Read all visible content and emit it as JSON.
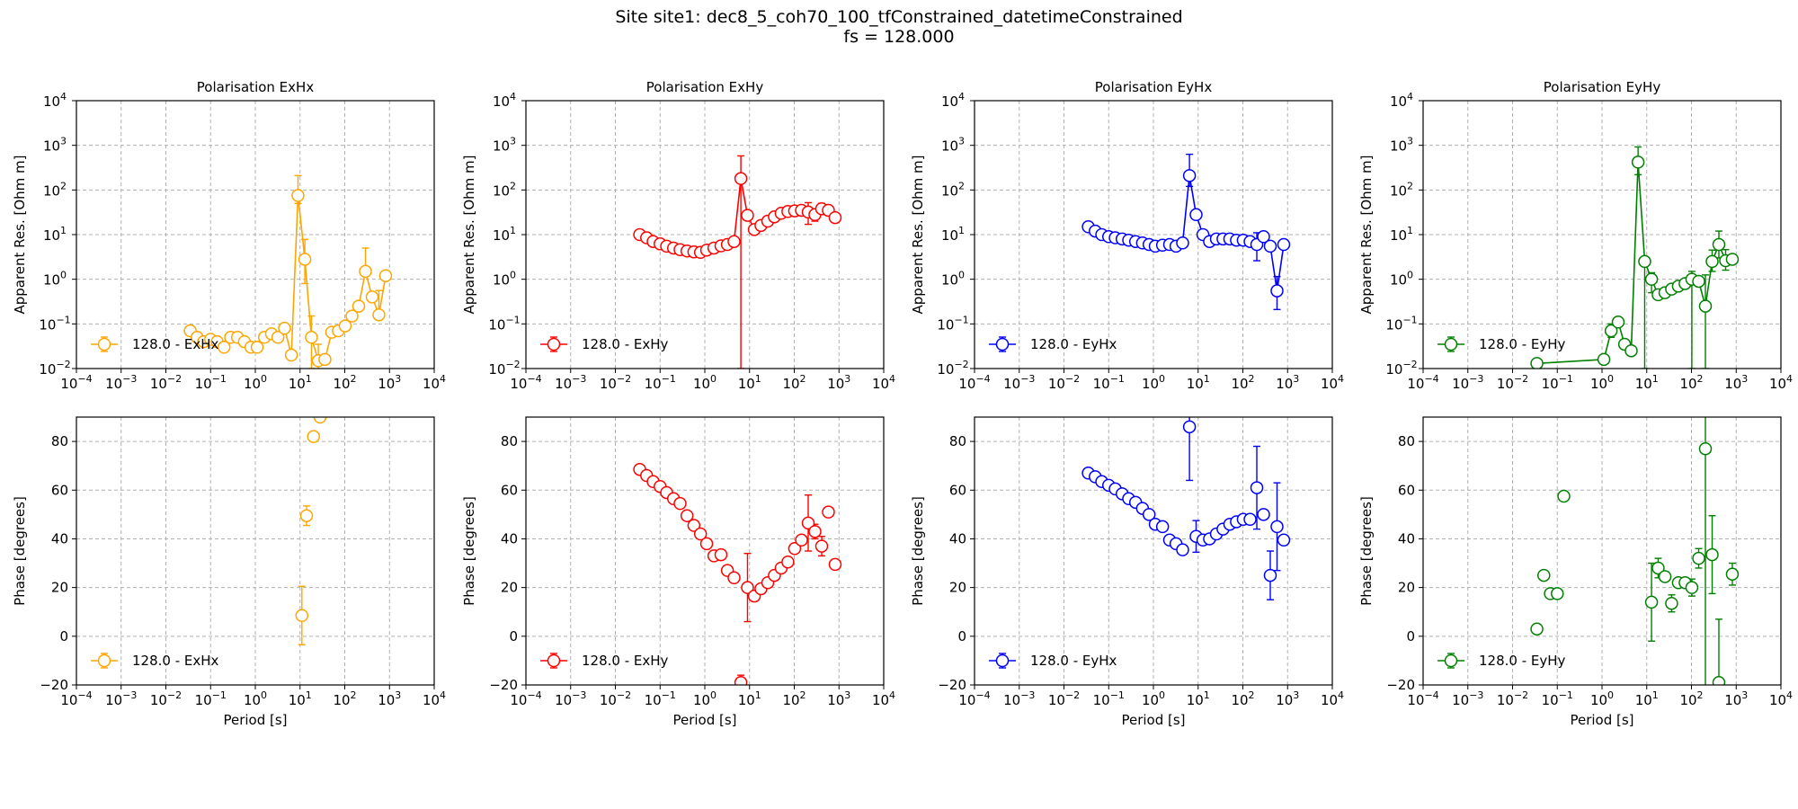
{
  "figure": {
    "title_line1": "Site site1: dec8_5_coh70_100_tfConstrained_datetimeConstrained",
    "title_line2": "fs = 128.000"
  },
  "chart_data": [
    {
      "type": "scatter",
      "panel": "res-ExHx",
      "title": "Polarisation ExHx",
      "xlabel": "",
      "ylabel": "Apparent Res. [Ohm m]",
      "xscale": "log",
      "yscale": "log",
      "xlim": [
        0.0001,
        10000
      ],
      "ylim": [
        0.01,
        10000
      ],
      "grid": true,
      "color": "#ffa500",
      "connect": true,
      "legend": {
        "label": "128.0 - ExHx",
        "loc": "lower-left"
      },
      "x": [
        0.035,
        0.05,
        0.07,
        0.1,
        0.14,
        0.2,
        0.28,
        0.4,
        0.57,
        0.8,
        1.1,
        1.6,
        2.3,
        3.2,
        4.5,
        6.4,
        9,
        12.8,
        18,
        25.6,
        36,
        51,
        72,
        102,
        145,
        205,
        290,
        410,
        580,
        820
      ],
      "y": [
        0.07,
        0.05,
        0.04,
        0.045,
        0.04,
        0.03,
        0.05,
        0.05,
        0.04,
        0.03,
        0.03,
        0.05,
        0.06,
        0.05,
        0.08,
        0.02,
        75,
        2.8,
        0.05,
        0.015,
        0.016,
        0.065,
        0.07,
        0.09,
        0.15,
        0.25,
        1.5,
        0.4,
        0.16,
        1.2
      ],
      "yerr": [
        [
          0,
          0
        ],
        [
          0,
          0
        ],
        [
          0,
          0
        ],
        [
          0,
          0
        ],
        [
          0,
          0
        ],
        [
          0,
          0
        ],
        [
          0,
          0
        ],
        [
          0,
          0
        ],
        [
          0,
          0
        ],
        [
          0,
          0
        ],
        [
          0,
          0
        ],
        [
          0,
          0
        ],
        [
          0,
          0
        ],
        [
          0,
          0
        ],
        [
          0,
          0
        ],
        [
          0,
          0
        ],
        [
          25,
          135
        ],
        [
          2,
          5
        ],
        [
          0.04,
          0.1
        ],
        [
          0.01,
          0.02
        ],
        [
          0,
          0
        ],
        [
          0,
          0
        ],
        [
          0,
          0
        ],
        [
          0,
          0
        ],
        [
          0,
          0
        ],
        [
          0,
          0
        ],
        [
          0.01,
          3.5
        ],
        [
          0,
          0
        ],
        [
          0.01,
          0.4
        ],
        [
          0,
          0
        ]
      ]
    },
    {
      "type": "scatter",
      "panel": "res-ExHy",
      "title": "Polarisation ExHy",
      "xlabel": "",
      "ylabel": "Apparent Res. [Ohm m]",
      "xscale": "log",
      "yscale": "log",
      "xlim": [
        0.0001,
        10000
      ],
      "ylim": [
        0.01,
        10000
      ],
      "grid": true,
      "color": "#ff0000",
      "connect": true,
      "legend": {
        "label": "128.0 - ExHy",
        "loc": "lower-left"
      },
      "x": [
        0.035,
        0.05,
        0.07,
        0.1,
        0.14,
        0.2,
        0.28,
        0.4,
        0.57,
        0.8,
        1.1,
        1.6,
        2.3,
        3.2,
        4.5,
        6.4,
        9,
        12.8,
        18,
        25.6,
        36,
        51,
        72,
        102,
        145,
        205,
        290,
        410,
        580,
        820
      ],
      "y": [
        10,
        8.5,
        7,
        6.2,
        5.5,
        5,
        4.6,
        4.3,
        4.1,
        4,
        4.5,
        5,
        5.6,
        6,
        7,
        180,
        27,
        13,
        16,
        20,
        25,
        30,
        33,
        34,
        35,
        32,
        28,
        38,
        35,
        24
      ],
      "yerr": [
        [
          0,
          0
        ],
        [
          0,
          0
        ],
        [
          0,
          0
        ],
        [
          0,
          0
        ],
        [
          0,
          0
        ],
        [
          0,
          0
        ],
        [
          0,
          0
        ],
        [
          0,
          0
        ],
        [
          0,
          0
        ],
        [
          0,
          0
        ],
        [
          0,
          0
        ],
        [
          0,
          0
        ],
        [
          0,
          0
        ],
        [
          0,
          0
        ],
        [
          0,
          0
        ],
        [
          179.99,
          400
        ],
        [
          0,
          0
        ],
        [
          0,
          0
        ],
        [
          0,
          0
        ],
        [
          0,
          0
        ],
        [
          0,
          0
        ],
        [
          0,
          0
        ],
        [
          0,
          0
        ],
        [
          0,
          0
        ],
        [
          0,
          0
        ],
        [
          15,
          20
        ],
        [
          8,
          10
        ],
        [
          10,
          12
        ],
        [
          0,
          0
        ],
        [
          0,
          0
        ]
      ]
    },
    {
      "type": "scatter",
      "panel": "res-EyHx",
      "title": "Polarisation EyHx",
      "xlabel": "",
      "ylabel": "Apparent Res. [Ohm m]",
      "xscale": "log",
      "yscale": "log",
      "xlim": [
        0.0001,
        10000
      ],
      "ylim": [
        0.01,
        10000
      ],
      "grid": true,
      "color": "#0000ff",
      "connect": true,
      "legend": {
        "label": "128.0 - EyHx",
        "loc": "lower-left"
      },
      "x": [
        0.035,
        0.05,
        0.07,
        0.1,
        0.14,
        0.2,
        0.28,
        0.4,
        0.57,
        0.8,
        1.1,
        1.6,
        2.3,
        3.2,
        4.5,
        6.4,
        9,
        12.8,
        18,
        25.6,
        36,
        51,
        72,
        102,
        145,
        205,
        290,
        410,
        580,
        820
      ],
      "y": [
        15,
        12,
        10,
        9,
        8.5,
        8,
        7.5,
        7,
        6.5,
        6,
        5.5,
        5.8,
        6,
        5.5,
        6.5,
        210,
        28,
        10,
        7,
        8,
        8,
        8,
        7.5,
        7.5,
        7,
        6,
        9,
        5.5,
        0.55,
        6
      ],
      "yerr": [
        [
          0,
          0
        ],
        [
          0,
          0
        ],
        [
          0,
          0
        ],
        [
          0,
          0
        ],
        [
          0,
          0
        ],
        [
          0,
          0
        ],
        [
          0,
          0
        ],
        [
          0,
          0
        ],
        [
          0,
          0
        ],
        [
          0,
          0
        ],
        [
          0,
          0
        ],
        [
          0,
          0
        ],
        [
          0,
          0
        ],
        [
          0,
          0
        ],
        [
          0,
          0
        ],
        [
          90,
          420
        ],
        [
          0,
          0
        ],
        [
          0,
          0
        ],
        [
          0,
          0
        ],
        [
          0,
          0
        ],
        [
          0,
          0
        ],
        [
          0,
          0
        ],
        [
          0,
          0
        ],
        [
          0,
          0
        ],
        [
          0,
          0
        ],
        [
          3.4,
          5
        ],
        [
          0,
          0
        ],
        [
          0,
          0
        ],
        [
          0.34,
          0.6
        ],
        [
          0,
          0
        ]
      ]
    },
    {
      "type": "scatter",
      "panel": "res-EyHy",
      "title": "Polarisation EyHy",
      "xlabel": "",
      "ylabel": "Apparent Res. [Ohm m]",
      "xscale": "log",
      "yscale": "log",
      "xlim": [
        0.0001,
        10000
      ],
      "ylim": [
        0.01,
        10000
      ],
      "grid": true,
      "color": "#008000",
      "connect": true,
      "legend": {
        "label": "128.0 - EyHy",
        "loc": "lower-left"
      },
      "x": [
        0.035,
        1.1,
        1.6,
        2.3,
        3.2,
        4.5,
        6.4,
        9,
        12.8,
        18,
        25.6,
        36,
        51,
        72,
        102,
        145,
        205,
        290,
        410,
        580,
        820
      ],
      "y": [
        0.013,
        0.016,
        0.07,
        0.11,
        0.035,
        0.025,
        420,
        2.5,
        1,
        0.45,
        0.5,
        0.6,
        0.7,
        0.8,
        1,
        0.9,
        0.25,
        2.5,
        6,
        2.6,
        2.8
      ],
      "yerr": [
        [
          0,
          0
        ],
        [
          0,
          0
        ],
        [
          0.02,
          0.03
        ],
        [
          0,
          0
        ],
        [
          0,
          0
        ],
        [
          0,
          0
        ],
        [
          200,
          500
        ],
        [
          2.49,
          0.5
        ],
        [
          0.5,
          0.4
        ],
        [
          0,
          0
        ],
        [
          0,
          0
        ],
        [
          0,
          0
        ],
        [
          0,
          0
        ],
        [
          0,
          0
        ],
        [
          0.99,
          0.5
        ],
        [
          0,
          0
        ],
        [
          0.24,
          1
        ],
        [
          1,
          2
        ],
        [
          3,
          6
        ],
        [
          1,
          2
        ],
        [
          0,
          0
        ]
      ]
    },
    {
      "type": "scatter",
      "panel": "phase-ExHx",
      "title": "",
      "xlabel": "Period [s]",
      "ylabel": "Phase [degrees]",
      "xscale": "log",
      "yscale": "linear",
      "xlim": [
        0.0001,
        10000
      ],
      "ylim": [
        -20,
        90
      ],
      "grid": true,
      "color": "#ffa500",
      "connect": false,
      "legend": {
        "label": "128.0 - ExHx",
        "loc": "lower-left"
      },
      "x": [
        11,
        14,
        20,
        28
      ],
      "y": [
        8.5,
        49.5,
        82,
        90
      ],
      "yerr": [
        [
          12,
          12
        ],
        [
          4,
          4
        ],
        [
          1.5,
          1.5
        ],
        [
          0.5,
          0.5
        ]
      ]
    },
    {
      "type": "scatter",
      "panel": "phase-ExHy",
      "title": "",
      "xlabel": "Period [s]",
      "ylabel": "Phase [degrees]",
      "xscale": "log",
      "yscale": "linear",
      "xlim": [
        0.0001,
        10000
      ],
      "ylim": [
        -20,
        90
      ],
      "grid": true,
      "color": "#ff0000",
      "connect": false,
      "legend": {
        "label": "128.0 - ExHy",
        "loc": "lower-left"
      },
      "x": [
        0.035,
        0.05,
        0.07,
        0.1,
        0.14,
        0.2,
        0.28,
        0.4,
        0.57,
        0.8,
        1.1,
        1.6,
        2.3,
        3.2,
        4.5,
        6.4,
        9,
        12.8,
        18,
        25.6,
        36,
        51,
        72,
        102,
        145,
        205,
        290,
        410,
        580,
        820
      ],
      "y": [
        68.5,
        66,
        63.5,
        61.5,
        59,
        56.5,
        54.5,
        49.5,
        45.5,
        42,
        38,
        33,
        33.5,
        27,
        24,
        -19,
        20,
        16.5,
        19.5,
        22,
        25,
        28,
        30.5,
        36,
        39.5,
        46.5,
        43,
        37,
        51,
        29.5
      ],
      "yerr": [
        [
          0,
          0
        ],
        [
          0,
          0
        ],
        [
          0,
          0
        ],
        [
          0,
          0
        ],
        [
          0,
          0
        ],
        [
          0,
          0
        ],
        [
          0,
          0
        ],
        [
          0,
          0
        ],
        [
          0,
          0
        ],
        [
          0,
          0
        ],
        [
          0,
          0
        ],
        [
          0,
          0
        ],
        [
          0,
          0
        ],
        [
          1.5,
          1.5
        ],
        [
          0,
          0
        ],
        [
          3,
          3
        ],
        [
          14,
          14
        ],
        [
          2,
          2
        ],
        [
          0,
          0
        ],
        [
          0,
          0
        ],
        [
          0,
          0
        ],
        [
          0,
          0
        ],
        [
          0,
          0
        ],
        [
          0,
          0
        ],
        [
          0,
          0
        ],
        [
          11.5,
          11.5
        ],
        [
          3,
          3
        ],
        [
          4,
          4
        ],
        [
          1.5,
          1.5
        ],
        [
          2,
          2
        ]
      ]
    },
    {
      "type": "scatter",
      "panel": "phase-EyHx",
      "title": "",
      "xlabel": "Period [s]",
      "ylabel": "Phase [degrees]",
      "xscale": "log",
      "yscale": "linear",
      "xlim": [
        0.0001,
        10000
      ],
      "ylim": [
        -20,
        90
      ],
      "grid": true,
      "color": "#0000ff",
      "connect": false,
      "legend": {
        "label": "128.0 - EyHx",
        "loc": "lower-left"
      },
      "x": [
        0.035,
        0.05,
        0.07,
        0.1,
        0.14,
        0.2,
        0.28,
        0.4,
        0.57,
        0.8,
        1.1,
        1.6,
        2.3,
        3.2,
        4.5,
        6.4,
        9,
        12.8,
        18,
        25.6,
        36,
        51,
        72,
        102,
        145,
        205,
        290,
        410,
        580,
        820
      ],
      "y": [
        67,
        65.5,
        63.5,
        62,
        60.5,
        58.5,
        56.5,
        55,
        52.5,
        50,
        46,
        45,
        39.5,
        38,
        35.5,
        86,
        41,
        39.5,
        40,
        42,
        44,
        46,
        47,
        48,
        48,
        61,
        50,
        25,
        45,
        39.5
      ],
      "yerr": [
        [
          0,
          0
        ],
        [
          0,
          0
        ],
        [
          0,
          0
        ],
        [
          0,
          0
        ],
        [
          0,
          0
        ],
        [
          0,
          0
        ],
        [
          0,
          0
        ],
        [
          0,
          0
        ],
        [
          0,
          0
        ],
        [
          0,
          0
        ],
        [
          0,
          0
        ],
        [
          0,
          0
        ],
        [
          0,
          0
        ],
        [
          0,
          0
        ],
        [
          0,
          0
        ],
        [
          22,
          22
        ],
        [
          6.5,
          6.5
        ],
        [
          2,
          2
        ],
        [
          0,
          0
        ],
        [
          0,
          0
        ],
        [
          0,
          0
        ],
        [
          0,
          0
        ],
        [
          0,
          0
        ],
        [
          0,
          0
        ],
        [
          0,
          0
        ],
        [
          17,
          17
        ],
        [
          2,
          2
        ],
        [
          10,
          10
        ],
        [
          18,
          18
        ],
        [
          0,
          0
        ]
      ]
    },
    {
      "type": "scatter",
      "panel": "phase-EyHy",
      "title": "",
      "xlabel": "Period [s]",
      "ylabel": "Phase [degrees]",
      "xscale": "log",
      "yscale": "linear",
      "xlim": [
        0.0001,
        10000
      ],
      "ylim": [
        -20,
        90
      ],
      "grid": true,
      "color": "#008000",
      "connect": false,
      "legend": {
        "label": "128.0 - EyHy",
        "loc": "lower-left"
      },
      "x": [
        0.035,
        0.05,
        0.07,
        0.1,
        0.14,
        12.8,
        18,
        25.6,
        36,
        51,
        72,
        102,
        145,
        205,
        290,
        410,
        820
      ],
      "y": [
        3,
        25,
        17.5,
        17.5,
        57.5,
        14,
        28,
        24.5,
        13.5,
        22,
        22,
        20,
        32,
        77,
        33.5,
        -19,
        25.5
      ],
      "yerr": [
        [
          0,
          0
        ],
        [
          0,
          0
        ],
        [
          0,
          0
        ],
        [
          0,
          0
        ],
        [
          0,
          0
        ],
        [
          16,
          16
        ],
        [
          4,
          4
        ],
        [
          0,
          0
        ],
        [
          3.5,
          3.5
        ],
        [
          0,
          0
        ],
        [
          2,
          2
        ],
        [
          3.5,
          3.5
        ],
        [
          4,
          4
        ],
        [
          100,
          100
        ],
        [
          16,
          16
        ],
        [
          26,
          26
        ],
        [
          4.5,
          4.5
        ]
      ]
    }
  ]
}
